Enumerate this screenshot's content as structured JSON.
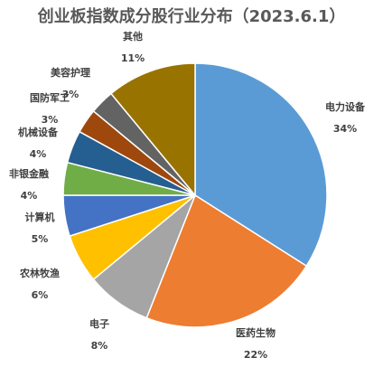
{
  "chart_data": {
    "type": "pie",
    "title": "创业板指数成分股行业分布（2023.6.1）",
    "slices": [
      {
        "label": "电力设备",
        "value": 34,
        "display": "34%",
        "color": "#5b9bd5"
      },
      {
        "label": "医药生物",
        "value": 22,
        "display": "22%",
        "color": "#ed7d31"
      },
      {
        "label": "电子",
        "value": 8,
        "display": "8%",
        "color": "#a5a5a5"
      },
      {
        "label": "农林牧渔",
        "value": 6,
        "display": "6%",
        "color": "#ffc000"
      },
      {
        "label": "计算机",
        "value": 5,
        "display": "5%",
        "color": "#4472c4"
      },
      {
        "label": "非银金融",
        "value": 4,
        "display": "4%",
        "color": "#70ad47"
      },
      {
        "label": "机械设备",
        "value": 4,
        "display": "4%",
        "color": "#255e91"
      },
      {
        "label": "国防军工",
        "value": 3,
        "display": "3%",
        "color": "#9e480e"
      },
      {
        "label": "美容护理",
        "value": 3,
        "display": "3%",
        "color": "#636363"
      },
      {
        "label": "其他",
        "value": 11,
        "display": "11%",
        "color": "#997300"
      }
    ]
  }
}
